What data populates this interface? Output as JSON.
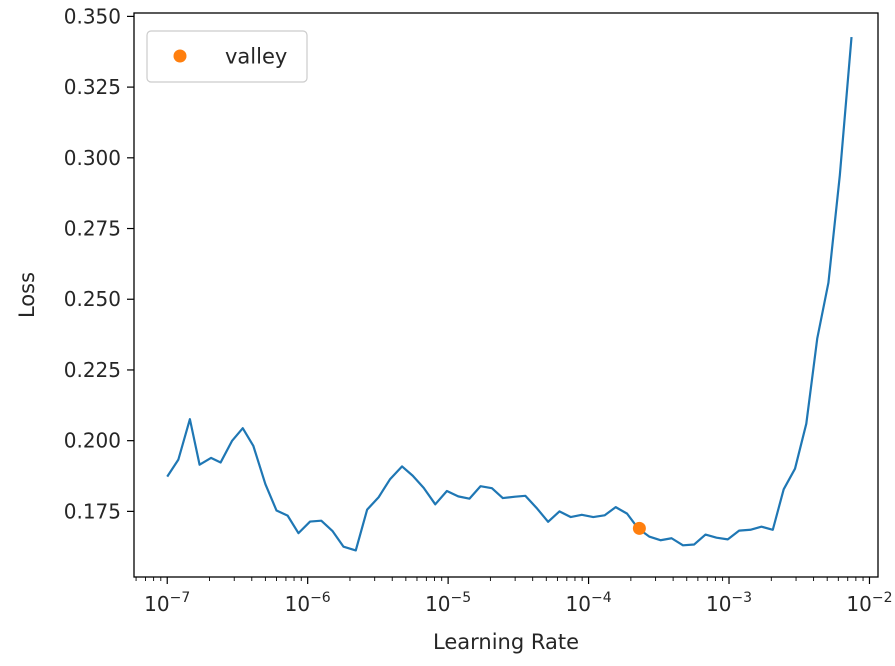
{
  "chart_data": {
    "type": "line",
    "xscale": "log",
    "xlabel": "Learning Rate",
    "ylabel": "Loss",
    "xlim": [
      5.8e-08,
      0.0115
    ],
    "ylim": [
      0.1518,
      0.3512
    ],
    "grid": false,
    "legend": {
      "position": "top-left",
      "entries": [
        {
          "name": "valley",
          "color": "#ff7f0e",
          "marker": "circle"
        }
      ]
    },
    "x_ticks": [
      {
        "value": 1e-07,
        "base": "10",
        "exp": "−7"
      },
      {
        "value": 1e-06,
        "base": "10",
        "exp": "−6"
      },
      {
        "value": 1e-05,
        "base": "10",
        "exp": "−5"
      },
      {
        "value": 0.0001,
        "base": "10",
        "exp": "−4"
      },
      {
        "value": 0.001,
        "base": "10",
        "exp": "−3"
      },
      {
        "value": 0.01,
        "base": "10",
        "exp": "−2"
      }
    ],
    "y_ticks": [
      {
        "value": 0.175,
        "label": "0.175"
      },
      {
        "value": 0.2,
        "label": "0.200"
      },
      {
        "value": 0.225,
        "label": "0.225"
      },
      {
        "value": 0.25,
        "label": "0.250"
      },
      {
        "value": 0.275,
        "label": "0.275"
      },
      {
        "value": 0.3,
        "label": "0.300"
      },
      {
        "value": 0.325,
        "label": "0.325"
      },
      {
        "value": 0.35,
        "label": "0.350"
      }
    ],
    "series": [
      {
        "color": "#1f77b4",
        "points": [
          [
            1e-07,
            0.1873
          ],
          [
            1.2e-07,
            0.1933
          ],
          [
            1.45e-07,
            0.2076
          ],
          [
            1.7e-07,
            0.1915
          ],
          [
            2.05e-07,
            0.1939
          ],
          [
            2.4e-07,
            0.1923
          ],
          [
            2.9e-07,
            0.2
          ],
          [
            3.45e-07,
            0.2044
          ],
          [
            4.1e-07,
            0.1982
          ],
          [
            5e-07,
            0.1846
          ],
          [
            6e-07,
            0.1753
          ],
          [
            7.2e-07,
            0.1735
          ],
          [
            8.6e-07,
            0.1673
          ],
          [
            1.04e-06,
            0.1714
          ],
          [
            1.25e-06,
            0.1717
          ],
          [
            1.5e-06,
            0.1681
          ],
          [
            1.8e-06,
            0.1625
          ],
          [
            2.2e-06,
            0.1612
          ],
          [
            2.65e-06,
            0.1756
          ],
          [
            3.2e-06,
            0.18
          ],
          [
            3.85e-06,
            0.1863
          ],
          [
            4.7e-06,
            0.1909
          ],
          [
            5.6e-06,
            0.1876
          ],
          [
            6.7e-06,
            0.1833
          ],
          [
            8.1e-06,
            0.1775
          ],
          [
            9.8e-06,
            0.1822
          ],
          [
            1.18e-05,
            0.1803
          ],
          [
            1.42e-05,
            0.1795
          ],
          [
            1.7e-05,
            0.1839
          ],
          [
            2.05e-05,
            0.1832
          ],
          [
            2.45e-05,
            0.1797
          ],
          [
            3e-05,
            0.1802
          ],
          [
            3.55e-05,
            0.1805
          ],
          [
            4.3e-05,
            0.176
          ],
          [
            5.15e-05,
            0.1713
          ],
          [
            6.2e-05,
            0.175
          ],
          [
            7.45e-05,
            0.173
          ],
          [
            8.95e-05,
            0.1738
          ],
          [
            0.000108,
            0.173
          ],
          [
            0.00013,
            0.1736
          ],
          [
            0.000156,
            0.1765
          ],
          [
            0.000188,
            0.1742
          ],
          [
            0.000225,
            0.169
          ],
          [
            0.00027,
            0.1661
          ],
          [
            0.000325,
            0.1648
          ],
          [
            0.00039,
            0.1655
          ],
          [
            0.00047,
            0.163
          ],
          [
            0.000565,
            0.1633
          ],
          [
            0.00068,
            0.1668
          ],
          [
            0.000815,
            0.1657
          ],
          [
            0.00098,
            0.1651
          ],
          [
            0.00118,
            0.1682
          ],
          [
            0.00142,
            0.1685
          ],
          [
            0.0017,
            0.1696
          ],
          [
            0.00205,
            0.1685
          ],
          [
            0.00245,
            0.1828
          ],
          [
            0.00295,
            0.1901
          ],
          [
            0.00355,
            0.206
          ],
          [
            0.00425,
            0.2362
          ],
          [
            0.0051,
            0.2558
          ],
          [
            0.00615,
            0.2938
          ],
          [
            0.00745,
            0.3427
          ]
        ]
      },
      {
        "name": "valley",
        "color": "#ff7f0e",
        "marker": "circle",
        "points": [
          [
            0.00023,
            0.169
          ]
        ]
      }
    ]
  }
}
